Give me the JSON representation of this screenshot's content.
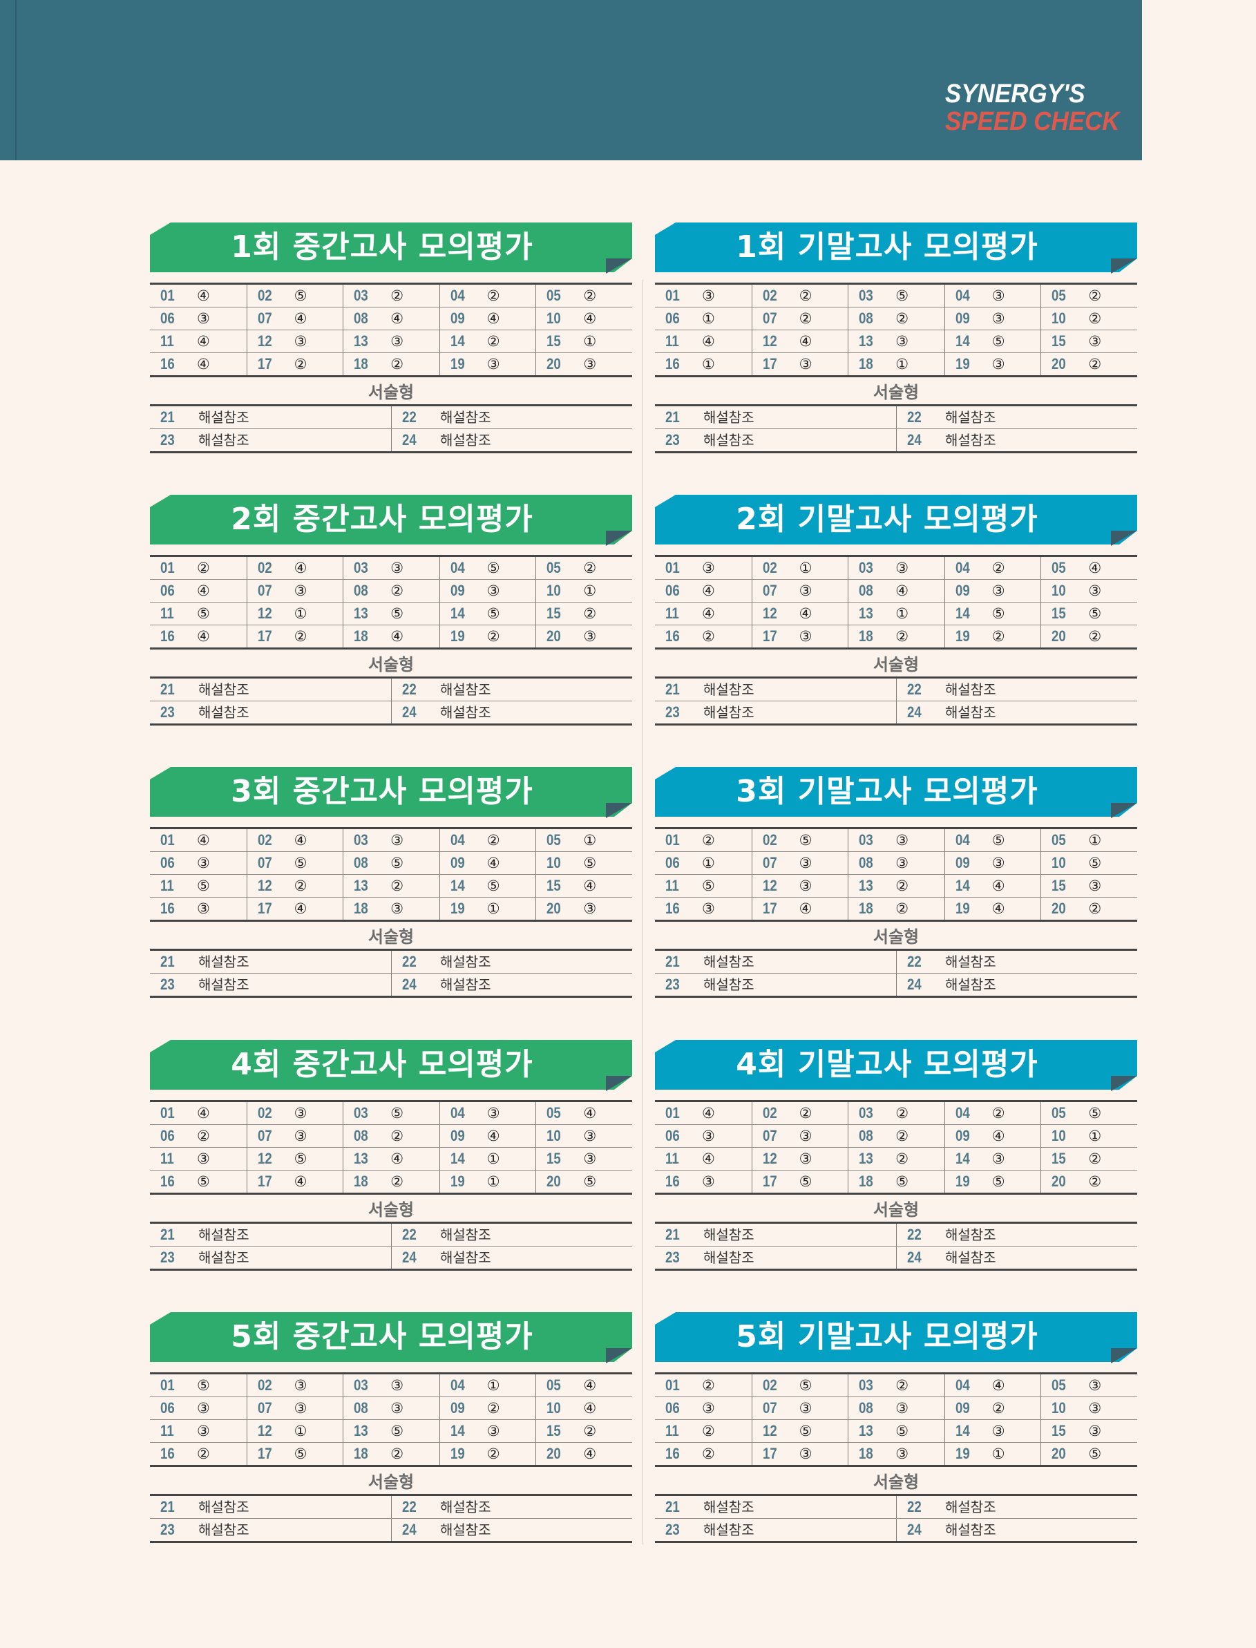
{
  "logo": {
    "line1": "SYNERGY'S",
    "line2": "SPEED CHECK"
  },
  "colors": {
    "header": "#376e80",
    "midterm": "#2eac6d",
    "final": "#03a0c4",
    "number": "#537a8a",
    "logo_accent": "#e0594d"
  },
  "numbers": [
    "01",
    "02",
    "03",
    "04",
    "05",
    "06",
    "07",
    "08",
    "09",
    "10",
    "11",
    "12",
    "13",
    "14",
    "15",
    "16",
    "17",
    "18",
    "19",
    "20"
  ],
  "subjective": {
    "label": "서술형",
    "items": [
      {
        "num": "21",
        "text": "해설참조"
      },
      {
        "num": "22",
        "text": "해설참조"
      },
      {
        "num": "23",
        "text": "해설참조"
      },
      {
        "num": "24",
        "text": "해설참조"
      }
    ]
  },
  "blocks": [
    {
      "title": "1회 중간고사 모의평가",
      "type": "midterm",
      "answers": [
        "④",
        "⑤",
        "②",
        "②",
        "②",
        "③",
        "④",
        "④",
        "④",
        "④",
        "④",
        "③",
        "③",
        "②",
        "①",
        "④",
        "②",
        "②",
        "③",
        "③"
      ]
    },
    {
      "title": "1회 기말고사 모의평가",
      "type": "final",
      "answers": [
        "③",
        "②",
        "⑤",
        "③",
        "②",
        "①",
        "②",
        "②",
        "③",
        "②",
        "④",
        "④",
        "③",
        "⑤",
        "③",
        "①",
        "③",
        "①",
        "③",
        "②"
      ]
    },
    {
      "title": "2회 중간고사 모의평가",
      "type": "midterm",
      "answers": [
        "②",
        "④",
        "③",
        "⑤",
        "②",
        "④",
        "③",
        "②",
        "③",
        "①",
        "⑤",
        "①",
        "⑤",
        "⑤",
        "②",
        "④",
        "②",
        "④",
        "②",
        "③"
      ]
    },
    {
      "title": "2회 기말고사 모의평가",
      "type": "final",
      "answers": [
        "③",
        "①",
        "③",
        "②",
        "④",
        "④",
        "③",
        "④",
        "③",
        "③",
        "④",
        "④",
        "①",
        "⑤",
        "⑤",
        "②",
        "③",
        "②",
        "②",
        "②"
      ]
    },
    {
      "title": "3회 중간고사 모의평가",
      "type": "midterm",
      "answers": [
        "④",
        "④",
        "③",
        "②",
        "①",
        "③",
        "⑤",
        "⑤",
        "④",
        "⑤",
        "⑤",
        "②",
        "②",
        "⑤",
        "④",
        "③",
        "④",
        "③",
        "①",
        "③"
      ]
    },
    {
      "title": "3회 기말고사 모의평가",
      "type": "final",
      "answers": [
        "②",
        "⑤",
        "③",
        "⑤",
        "①",
        "①",
        "③",
        "③",
        "③",
        "⑤",
        "⑤",
        "③",
        "②",
        "④",
        "③",
        "③",
        "④",
        "②",
        "④",
        "②"
      ]
    },
    {
      "title": "4회 중간고사 모의평가",
      "type": "midterm",
      "answers": [
        "④",
        "③",
        "⑤",
        "③",
        "④",
        "②",
        "③",
        "②",
        "④",
        "③",
        "③",
        "⑤",
        "④",
        "①",
        "③",
        "⑤",
        "④",
        "②",
        "①",
        "⑤"
      ]
    },
    {
      "title": "4회 기말고사 모의평가",
      "type": "final",
      "answers": [
        "④",
        "②",
        "②",
        "②",
        "⑤",
        "③",
        "③",
        "②",
        "④",
        "①",
        "④",
        "③",
        "②",
        "③",
        "②",
        "③",
        "⑤",
        "⑤",
        "⑤",
        "②"
      ]
    },
    {
      "title": "5회 중간고사 모의평가",
      "type": "midterm",
      "answers": [
        "⑤",
        "③",
        "③",
        "①",
        "④",
        "③",
        "③",
        "③",
        "②",
        "④",
        "③",
        "①",
        "⑤",
        "③",
        "②",
        "②",
        "⑤",
        "②",
        "②",
        "④"
      ]
    },
    {
      "title": "5회 기말고사 모의평가",
      "type": "final",
      "answers": [
        "②",
        "⑤",
        "②",
        "④",
        "③",
        "③",
        "③",
        "③",
        "②",
        "③",
        "②",
        "⑤",
        "⑤",
        "③",
        "③",
        "②",
        "③",
        "③",
        "①",
        "⑤"
      ]
    }
  ]
}
